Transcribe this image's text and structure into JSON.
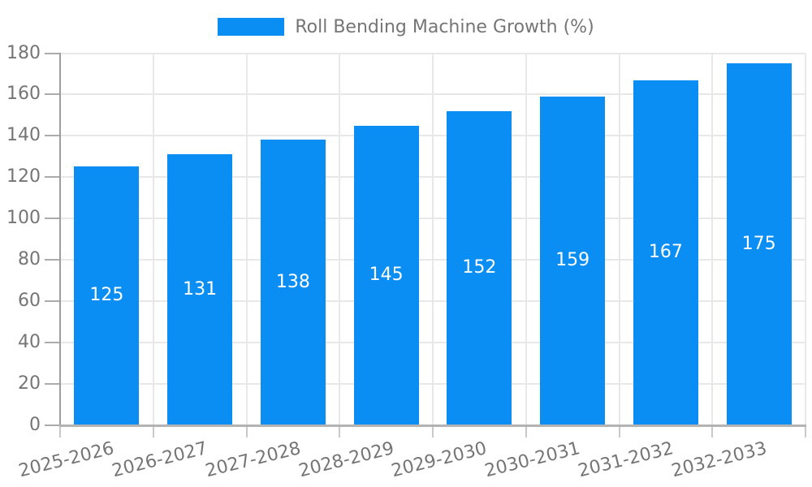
{
  "chart_data": {
    "type": "bar",
    "title": "Roll Bending Machine Growth (%)",
    "categories": [
      "2025-2026",
      "2026-2027",
      "2027-2028",
      "2028-2029",
      "2029-2030",
      "2030-2031",
      "2031-2032",
      "2032-2033"
    ],
    "values": [
      125,
      131,
      138,
      145,
      152,
      159,
      167,
      175
    ],
    "value_labels": [
      "125",
      "131",
      "138",
      "145",
      "152",
      "159",
      "167",
      "175"
    ],
    "yticks": [
      0,
      20,
      40,
      60,
      80,
      100,
      120,
      140,
      160,
      180
    ],
    "ylim": [
      0,
      180
    ],
    "xlabel": "",
    "ylabel": "",
    "grid": true,
    "legend_position": "top-center",
    "x_label_rotation_deg": -14,
    "colors": {
      "bar": "#0B8EF4",
      "text": "#757575",
      "grid": "#E8E8E8",
      "axis": "#9E9E9E",
      "baseline": "#B3B3B3",
      "ytick": "#ABABAB",
      "xtick": "#C9C9C9",
      "value": "#FFFFFF"
    }
  }
}
